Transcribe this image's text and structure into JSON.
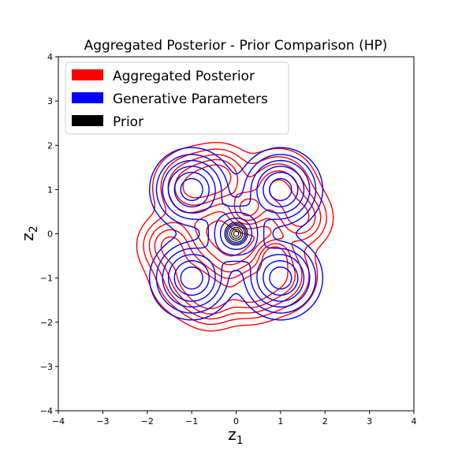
{
  "chart_data": {
    "type": "contour",
    "title": "Aggregated Posterior - Prior Comparison (HP)",
    "xlabel": "z",
    "xlabel_sub": "1",
    "ylabel": "z",
    "ylabel_sub": "2",
    "xlim": [
      -4,
      4
    ],
    "ylim": [
      -4,
      4
    ],
    "xticks": [
      "−4",
      "−3",
      "−2",
      "−1",
      "0",
      "1",
      "2",
      "3",
      "4"
    ],
    "yticks": [
      "−4",
      "−3",
      "−2",
      "−1",
      "0",
      "1",
      "2",
      "3",
      "4"
    ],
    "grid": false,
    "legend_position": "top-left",
    "legend": [
      {
        "label": "Aggregated Posterior",
        "color": "#ff0000"
      },
      {
        "label": "Generative Parameters",
        "color": "#0000ff"
      },
      {
        "label": "Prior",
        "color": "#000000"
      }
    ],
    "series": [
      {
        "name": "Aggregated Posterior",
        "color": "#ff0000",
        "components": [
          {
            "x": -1.0,
            "y": 1.05,
            "s": 0.42
          },
          {
            "x": 0.95,
            "y": 1.05,
            "s": 0.42
          },
          {
            "x": -1.05,
            "y": -1.0,
            "s": 0.42
          },
          {
            "x": 0.95,
            "y": -0.95,
            "s": 0.42
          },
          {
            "x": -0.35,
            "y": 1.3,
            "s": 0.35
          },
          {
            "x": -0.55,
            "y": -1.45,
            "s": 0.35
          },
          {
            "x": 1.45,
            "y": 0.35,
            "s": 0.35
          },
          {
            "x": -1.5,
            "y": -0.25,
            "s": 0.35
          },
          {
            "x": 0.3,
            "y": -1.3,
            "s": 0.35
          },
          {
            "x": 0.25,
            "y": 0.55,
            "s": 0.25
          },
          {
            "x": 0.85,
            "y": -0.5,
            "s": 0.2
          }
        ],
        "levels": [
          0.07,
          0.16,
          0.28,
          0.42,
          0.58
        ]
      },
      {
        "name": "Generative Parameters",
        "color": "#0000ff",
        "components": [
          {
            "x": -1.0,
            "y": 1.0,
            "s": 0.4
          },
          {
            "x": 1.0,
            "y": 1.0,
            "s": 0.4
          },
          {
            "x": -1.0,
            "y": -1.0,
            "s": 0.4
          },
          {
            "x": 1.0,
            "y": -1.0,
            "s": 0.4
          },
          {
            "x": 0.0,
            "y": 0.0,
            "s": 0.35
          }
        ],
        "levels": [
          0.06,
          0.14,
          0.26,
          0.42,
          0.62,
          0.82
        ]
      },
      {
        "name": "Prior",
        "color": "#000000",
        "components": [
          {
            "x": 0.0,
            "y": 0.0,
            "s": 0.12
          }
        ],
        "levels": [
          0.1,
          0.28,
          0.48,
          0.68,
          0.88
        ]
      }
    ]
  }
}
